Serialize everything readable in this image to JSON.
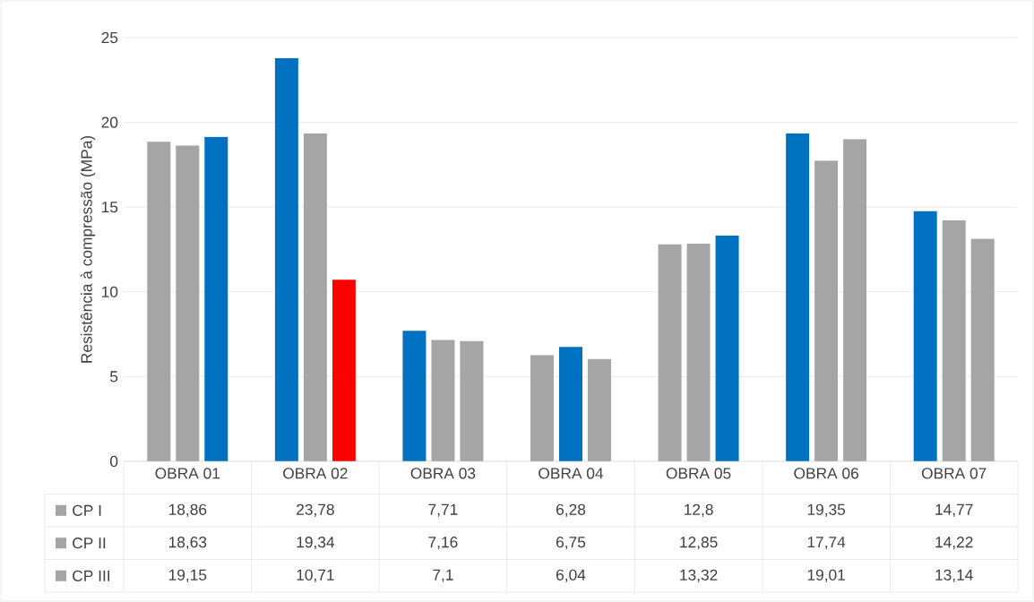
{
  "chart_data": {
    "type": "bar",
    "ylabel": "Resistência à compressão (MPa)",
    "categories": [
      "OBRA 01",
      "OBRA 02",
      "OBRA 03",
      "OBRA 04",
      "OBRA 05",
      "OBRA 06",
      "OBRA 07"
    ],
    "ylim": [
      0,
      25
    ],
    "yticks": [
      0,
      5,
      10,
      15,
      20,
      25
    ],
    "grid": "y",
    "legend": "bottom",
    "series": [
      {
        "name": "CP I",
        "color": "#a5a5a5",
        "colors": [
          "#a5a5a5",
          "#0070c0",
          "#0070c0",
          "#a5a5a5",
          "#a5a5a5",
          "#0070c0",
          "#0070c0"
        ],
        "values": [
          18.86,
          23.78,
          7.71,
          6.28,
          12.8,
          19.35,
          14.77
        ],
        "value_labels": [
          "18,86",
          "23,78",
          "7,71",
          "6,28",
          "12,8",
          "19,35",
          "14,77"
        ]
      },
      {
        "name": "CP II",
        "color": "#a5a5a5",
        "colors": [
          "#a5a5a5",
          "#a5a5a5",
          "#a5a5a5",
          "#0070c0",
          "#a5a5a5",
          "#a5a5a5",
          "#a5a5a5"
        ],
        "values": [
          18.63,
          19.34,
          7.16,
          6.75,
          12.85,
          17.74,
          14.22
        ],
        "value_labels": [
          "18,63",
          "19,34",
          "7,16",
          "6,75",
          "12,85",
          "17,74",
          "14,22"
        ]
      },
      {
        "name": "CP III",
        "color": "#a5a5a5",
        "colors": [
          "#0070c0",
          "#ff0000",
          "#a5a5a5",
          "#a5a5a5",
          "#0070c0",
          "#a5a5a5",
          "#a5a5a5"
        ],
        "values": [
          19.15,
          10.71,
          7.1,
          6.04,
          13.32,
          19.01,
          13.14
        ],
        "value_labels": [
          "19,15",
          "10,71",
          "7,1",
          "6,04",
          "13,32",
          "19,01",
          "13,14"
        ]
      }
    ]
  }
}
